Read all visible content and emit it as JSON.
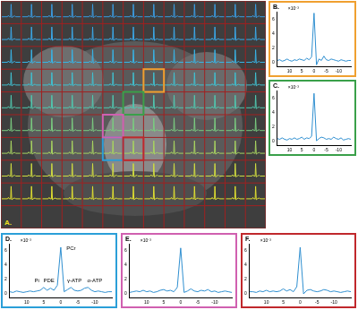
{
  "panel_a": {
    "label": "A.",
    "rows": 10,
    "cols": 13,
    "row_colors": [
      "#3a9be0",
      "#3aa8e8",
      "#38b4e6",
      "#40c0d0",
      "#50c8b0",
      "#7acc80",
      "#a8d460",
      "#d0dc40",
      "#e0e030",
      null
    ],
    "boxes": [
      {
        "chart": 0,
        "col": 7,
        "row": 3
      },
      {
        "chart": 1,
        "col": 6,
        "row": 4
      },
      {
        "chart": 2,
        "col": 5,
        "row": 6
      },
      {
        "chart": 3,
        "col": 5,
        "row": 5
      },
      {
        "chart": 4,
        "col": 6,
        "row": 6
      }
    ]
  },
  "chart_data": [
    {
      "type": "line",
      "title": "B.",
      "y_multiplier": "×10⁻³",
      "color": "#2f8fd0",
      "x": [
        15,
        14,
        13,
        12,
        11,
        10,
        9,
        8,
        7,
        6,
        5,
        4,
        3,
        2,
        1,
        0,
        -1,
        -2,
        -3,
        -4,
        -5,
        -6,
        -7,
        -8,
        -9,
        -10,
        -11,
        -12,
        -13,
        -14,
        -15
      ],
      "values": [
        0.3,
        0.4,
        0.2,
        0.3,
        0.5,
        0.3,
        0.2,
        0.4,
        0.3,
        0.5,
        0.4,
        0.3,
        0.6,
        0.4,
        0.8,
        6.8,
        -0.3,
        0.5,
        0.3,
        0.9,
        0.4,
        0.3,
        0.5,
        0.4,
        0.3,
        0.2,
        0.4,
        0.3,
        0.2,
        0.3,
        0.3
      ],
      "xlim": [
        15,
        -15
      ],
      "xticks": [
        10,
        5,
        0,
        -5,
        -10
      ],
      "ylim": [
        -0.5,
        7
      ],
      "yticks": [
        0,
        2,
        4,
        6
      ]
    },
    {
      "type": "line",
      "title": "C.",
      "y_multiplier": "×10⁻³",
      "color": "#2f8fd0",
      "x": [
        15,
        14,
        13,
        12,
        11,
        10,
        9,
        8,
        7,
        6,
        5,
        4,
        3,
        2,
        1,
        0,
        -1,
        -2,
        -3,
        -4,
        -5,
        -6,
        -7,
        -8,
        -9,
        -10,
        -11,
        -12,
        -13,
        -14,
        -15
      ],
      "values": [
        0.4,
        0.3,
        0.5,
        0.3,
        0.2,
        0.4,
        0.3,
        0.5,
        0.3,
        0.4,
        0.6,
        0.3,
        0.5,
        0.4,
        0.7,
        6.6,
        0.1,
        0.4,
        0.6,
        0.5,
        0.3,
        0.4,
        0.3,
        0.6,
        0.4,
        0.3,
        0.5,
        0.2,
        0.3,
        0.4,
        0.3
      ],
      "xlim": [
        15,
        -15
      ],
      "xticks": [
        10,
        5,
        0,
        -5,
        -10
      ],
      "ylim": [
        -0.5,
        7
      ],
      "yticks": [
        0,
        2,
        4,
        6
      ]
    },
    {
      "type": "line",
      "title": "D.",
      "y_multiplier": "×10⁻³",
      "color": "#2f8fd0",
      "x": [
        15,
        14,
        13,
        12,
        11,
        10,
        9,
        8,
        7,
        6,
        5,
        4,
        3,
        2,
        1,
        0,
        -1,
        -2,
        -3,
        -4,
        -5,
        -6,
        -7,
        -8,
        -9,
        -10,
        -11,
        -12,
        -13,
        -14,
        -15
      ],
      "values": [
        0.3,
        0.2,
        0.4,
        0.3,
        0.2,
        0.3,
        0.4,
        0.3,
        0.4,
        0.5,
        0.9,
        0.5,
        0.8,
        0.5,
        1.2,
        6.5,
        0.3,
        0.6,
        0.9,
        0.5,
        0.4,
        0.5,
        0.8,
        0.9,
        0.5,
        0.3,
        0.4,
        0.3,
        0.2,
        0.3,
        0.3
      ],
      "xlim": [
        15,
        -15
      ],
      "xticks": [
        10,
        5,
        0,
        -5,
        -10
      ],
      "ylim": [
        -0.5,
        7
      ],
      "yticks": [
        0,
        2,
        4,
        6
      ],
      "annotations": [
        {
          "text": "Pi",
          "x": 7,
          "y": 1.5
        },
        {
          "text": "PDE",
          "x": 3.5,
          "y": 1.5
        },
        {
          "text": "PCr",
          "x": -3,
          "y": 6
        },
        {
          "text": "γ-ATP",
          "x": -4,
          "y": 1.5
        },
        {
          "text": "α-ATP",
          "x": -10,
          "y": 1.5
        }
      ]
    },
    {
      "type": "line",
      "title": "E.",
      "y_multiplier": "×10⁻³",
      "color": "#2f8fd0",
      "x": [
        15,
        14,
        13,
        12,
        11,
        10,
        9,
        8,
        7,
        6,
        5,
        4,
        3,
        2,
        1,
        0,
        -1,
        -2,
        -3,
        -4,
        -5,
        -6,
        -7,
        -8,
        -9,
        -10,
        -11,
        -12,
        -13,
        -14,
        -15
      ],
      "values": [
        0.2,
        0.3,
        0.4,
        0.3,
        0.5,
        0.3,
        0.4,
        0.2,
        0.3,
        0.5,
        0.6,
        0.4,
        0.5,
        0.3,
        0.9,
        6.4,
        0.2,
        0.4,
        0.7,
        0.4,
        0.3,
        0.5,
        0.4,
        0.6,
        0.3,
        0.4,
        0.2,
        0.3,
        0.4,
        0.3,
        0.2
      ],
      "xlim": [
        15,
        -15
      ],
      "xticks": [
        10,
        5,
        0,
        -5,
        -10
      ],
      "ylim": [
        -0.5,
        7
      ],
      "yticks": [
        0,
        2,
        4,
        6
      ]
    },
    {
      "type": "line",
      "title": "F.",
      "y_multiplier": "×10⁻³",
      "color": "#2f8fd0",
      "x": [
        15,
        14,
        13,
        12,
        11,
        10,
        9,
        8,
        7,
        6,
        5,
        4,
        3,
        2,
        1,
        0,
        -1,
        -2,
        -3,
        -4,
        -5,
        -6,
        -7,
        -8,
        -9,
        -10,
        -11,
        -12,
        -13,
        -14,
        -15
      ],
      "values": [
        0.3,
        0.3,
        0.2,
        0.4,
        0.3,
        0.5,
        0.3,
        0.4,
        0.3,
        0.4,
        0.7,
        0.4,
        0.6,
        0.3,
        1.0,
        6.5,
        0.0,
        0.5,
        0.6,
        0.4,
        0.3,
        0.4,
        0.6,
        0.5,
        0.3,
        0.4,
        0.3,
        0.2,
        0.3,
        0.4,
        0.3
      ],
      "xlim": [
        15,
        -15
      ],
      "xticks": [
        10,
        5,
        0,
        -5,
        -10
      ],
      "ylim": [
        -0.5,
        7
      ],
      "yticks": [
        0,
        2,
        4,
        6
      ]
    }
  ]
}
